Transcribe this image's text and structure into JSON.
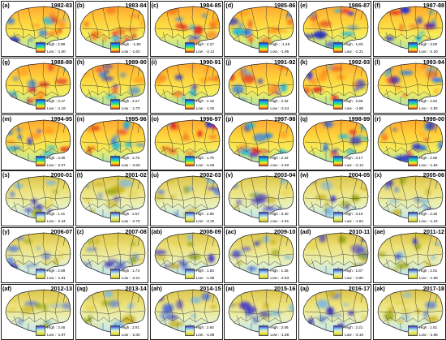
{
  "legend_high_label": "High : ",
  "legend_low_label": "Low : ",
  "panels": [
    {
      "letter": "(a)",
      "year": "1982-83",
      "high": "2.89",
      "low": "-1.50",
      "palette": "rainbow",
      "tone": 0.55
    },
    {
      "letter": "(b)",
      "year": "1983-84",
      "high": "-1.80",
      "low": "-1.83",
      "palette": "rainbow",
      "tone": 0.75
    },
    {
      "letter": "(c)",
      "year": "1984-85",
      "high": "2.27",
      "low": "-2.12",
      "palette": "rainbow",
      "tone": 0.6
    },
    {
      "letter": "(d)",
      "year": "1985-86",
      "high": "-1.49",
      "low": "-1.95",
      "palette": "rainbow",
      "tone": 0.35
    },
    {
      "letter": "(e)",
      "year": "1986-87",
      "high": "1.83",
      "low": "-2.21",
      "palette": "rainbow",
      "tone": 0.6
    },
    {
      "letter": "(f)",
      "year": "1987-88",
      "high": "3.00",
      "low": "-2.20",
      "palette": "rainbow",
      "tone": 0.5
    },
    {
      "letter": "(g)",
      "year": "1988-89",
      "high": "3.17",
      "low": "-1.19",
      "palette": "rainbow",
      "tone": 0.62
    },
    {
      "letter": "(h)",
      "year": "1989-90",
      "high": "2.27",
      "low": "-1.70",
      "palette": "rainbow",
      "tone": 0.42
    },
    {
      "letter": "(i)",
      "year": "1990-91",
      "high": "2.18",
      "low": "-1.82",
      "palette": "rainbow",
      "tone": 0.6
    },
    {
      "letter": "(j)",
      "year": "1991-92",
      "high": "2.32",
      "low": "-2.44",
      "palette": "rainbow",
      "tone": 0.5
    },
    {
      "letter": "(k)",
      "year": "1992-93",
      "high": "2.89",
      "low": "-1.88",
      "palette": "rainbow",
      "tone": 0.58
    },
    {
      "letter": "(l)",
      "year": "1993-94",
      "high": "2.84",
      "low": "-1.92",
      "palette": "rainbow",
      "tone": 0.55
    },
    {
      "letter": "(m)",
      "year": "1994-95",
      "high": "3.36",
      "low": "-2.07",
      "palette": "rainbow",
      "tone": 0.45
    },
    {
      "letter": "(n)",
      "year": "1995-96",
      "high": "2.75",
      "low": "-2.60",
      "palette": "rainbow",
      "tone": 0.5
    },
    {
      "letter": "(o)",
      "year": "1996-97",
      "high": "1.79",
      "low": "-1.56",
      "palette": "rainbow",
      "tone": 0.5
    },
    {
      "letter": "(p)",
      "year": "1997-98",
      "high": "2.42",
      "low": "-1.92",
      "palette": "rainbow",
      "tone": 0.55
    },
    {
      "letter": "(q)",
      "year": "1998-99",
      "high": "3.17",
      "low": "-2.13",
      "palette": "rainbow",
      "tone": 0.45
    },
    {
      "letter": "(r)",
      "year": "1999-00",
      "high": "2.66",
      "low": "-1.84",
      "palette": "rainbow",
      "tone": 0.48
    },
    {
      "letter": "(s)",
      "year": "2000-01",
      "high": "1.41",
      "low": "-2.34",
      "palette": "pastel",
      "tone": 0.55
    },
    {
      "letter": "(t)",
      "year": "2001-02",
      "high": "2.57",
      "low": "-2.75",
      "palette": "pastel",
      "tone": 0.5
    },
    {
      "letter": "(u)",
      "year": "2002-03",
      "high": "2.66",
      "low": "-2.32",
      "palette": "pastel",
      "tone": 0.55
    },
    {
      "letter": "(v)",
      "year": "2003-04",
      "high": "3.40",
      "low": "-1.51",
      "palette": "pastel",
      "tone": 0.45
    },
    {
      "letter": "(w)",
      "year": "2004-05",
      "high": "3.16",
      "low": "-1.84",
      "palette": "pastel",
      "tone": 0.5
    },
    {
      "letter": "(x)",
      "year": "2005-06",
      "high": "2.26",
      "low": "-1.24",
      "palette": "pastel",
      "tone": 0.45
    },
    {
      "letter": "(y)",
      "year": "2006-07",
      "high": "2.88",
      "low": "-1.81",
      "palette": "pastel",
      "tone": 0.5
    },
    {
      "letter": "(z)",
      "year": "2007-08",
      "high": "1.73",
      "low": "-2.21",
      "palette": "pastel",
      "tone": 0.55
    },
    {
      "letter": "(ab)",
      "year": "2008-09",
      "high": "1.83",
      "low": "-1.88",
      "palette": "pastel",
      "tone": 0.45
    },
    {
      "letter": "(ac)",
      "year": "2009-10",
      "high": "1.35",
      "low": "-2.63",
      "palette": "pastel",
      "tone": 0.55
    },
    {
      "letter": "(ad)",
      "year": "2010-11",
      "high": "1.87",
      "low": "-3.90",
      "palette": "pastel",
      "tone": 0.6
    },
    {
      "letter": "(ae)",
      "year": "2011-12",
      "high": "2.01",
      "low": "-1.58",
      "palette": "pastel",
      "tone": 0.48
    },
    {
      "letter": "(af)",
      "year": "2012-13",
      "high": "3.46",
      "low": "-1.97",
      "palette": "pastel",
      "tone": 0.5
    },
    {
      "letter": "(ag)",
      "year": "2013-14",
      "high": "2.91",
      "low": "-2.30",
      "palette": "pastel",
      "tone": 0.5
    },
    {
      "letter": "(ah)",
      "year": "2014-15",
      "high": "2.64",
      "low": "-1.89",
      "palette": "pastel",
      "tone": 0.45
    },
    {
      "letter": "(ai)",
      "year": "2015-16",
      "high": "2.06",
      "low": "-1.88",
      "palette": "pastel",
      "tone": 0.45
    },
    {
      "letter": "(aj)",
      "year": "2016-17",
      "high": "2.21",
      "low": "-3.19",
      "palette": "pastel",
      "tone": 0.55
    },
    {
      "letter": "(ak)",
      "year": "2017-18",
      "high": "1.61",
      "low": "-1.95",
      "palette": "pastel",
      "tone": 0.5
    }
  ]
}
